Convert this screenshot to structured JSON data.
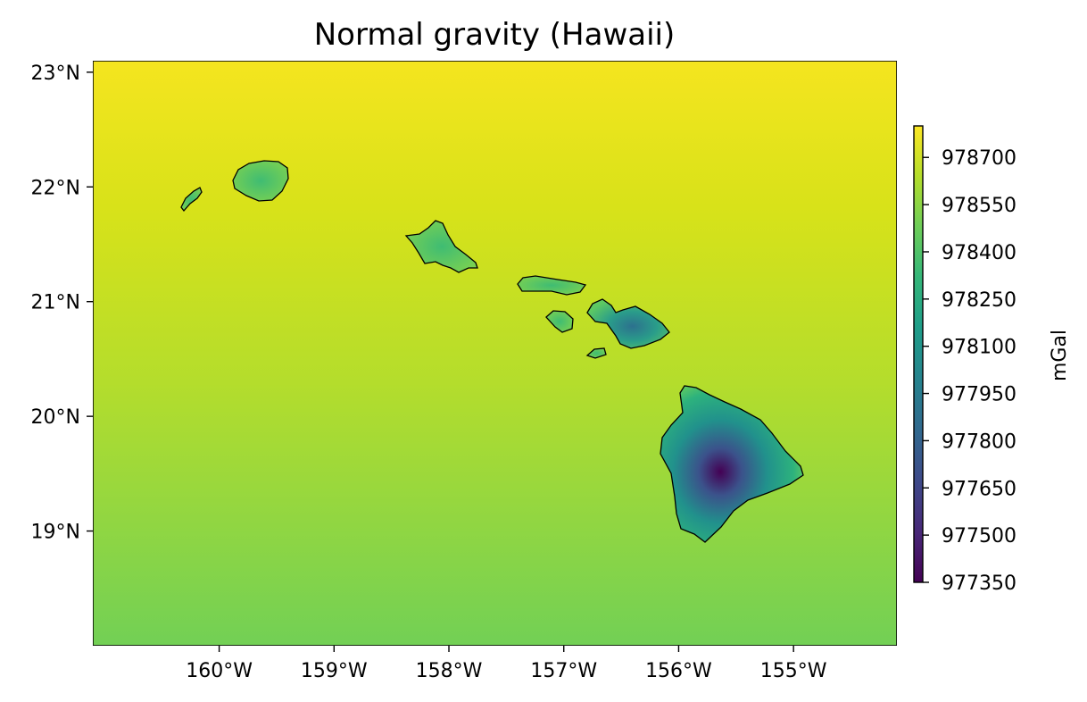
{
  "chart_data": {
    "type": "heatmap",
    "title": "Normal gravity (Hawaii)",
    "x_ticks": [
      {
        "value": -160,
        "label": "160°W"
      },
      {
        "value": -159,
        "label": "159°W"
      },
      {
        "value": -158,
        "label": "158°W"
      },
      {
        "value": -157,
        "label": "157°W"
      },
      {
        "value": -156,
        "label": "156°W"
      },
      {
        "value": -155,
        "label": "155°W"
      }
    ],
    "y_ticks": [
      {
        "value": 23,
        "label": "23°N"
      },
      {
        "value": 22,
        "label": "22°N"
      },
      {
        "value": 21,
        "label": "21°N"
      },
      {
        "value": 20,
        "label": "20°N"
      },
      {
        "value": 19,
        "label": "19°N"
      }
    ],
    "xlim": [
      -161.1,
      -154.1
    ],
    "ylim": [
      18.0,
      23.1
    ],
    "colorbar": {
      "label": "mGal",
      "colormap": "viridis",
      "range": [
        977350,
        978800
      ],
      "ticks": [
        977350,
        977500,
        977650,
        977800,
        977950,
        978100,
        978250,
        978400,
        978550,
        978700
      ],
      "tick_labels": [
        "977350",
        "977500",
        "977650",
        "977800",
        "977950",
        "978100",
        "978250",
        "978400",
        "978550",
        "978700"
      ]
    },
    "field": {
      "description_values": [
        {
          "lat": 23.1,
          "value": 978800
        },
        {
          "lat": 18.0,
          "value": 978520
        }
      ],
      "island_min_value": 977350
    },
    "grid": false
  },
  "colors": {
    "viridis": [
      "#440154",
      "#482878",
      "#3e4989",
      "#31688e",
      "#26828e",
      "#1f9e89",
      "#35b779",
      "#6ece58",
      "#b5de2b",
      "#fde725"
    ],
    "coastline": "#000000",
    "frame": "#000000"
  }
}
